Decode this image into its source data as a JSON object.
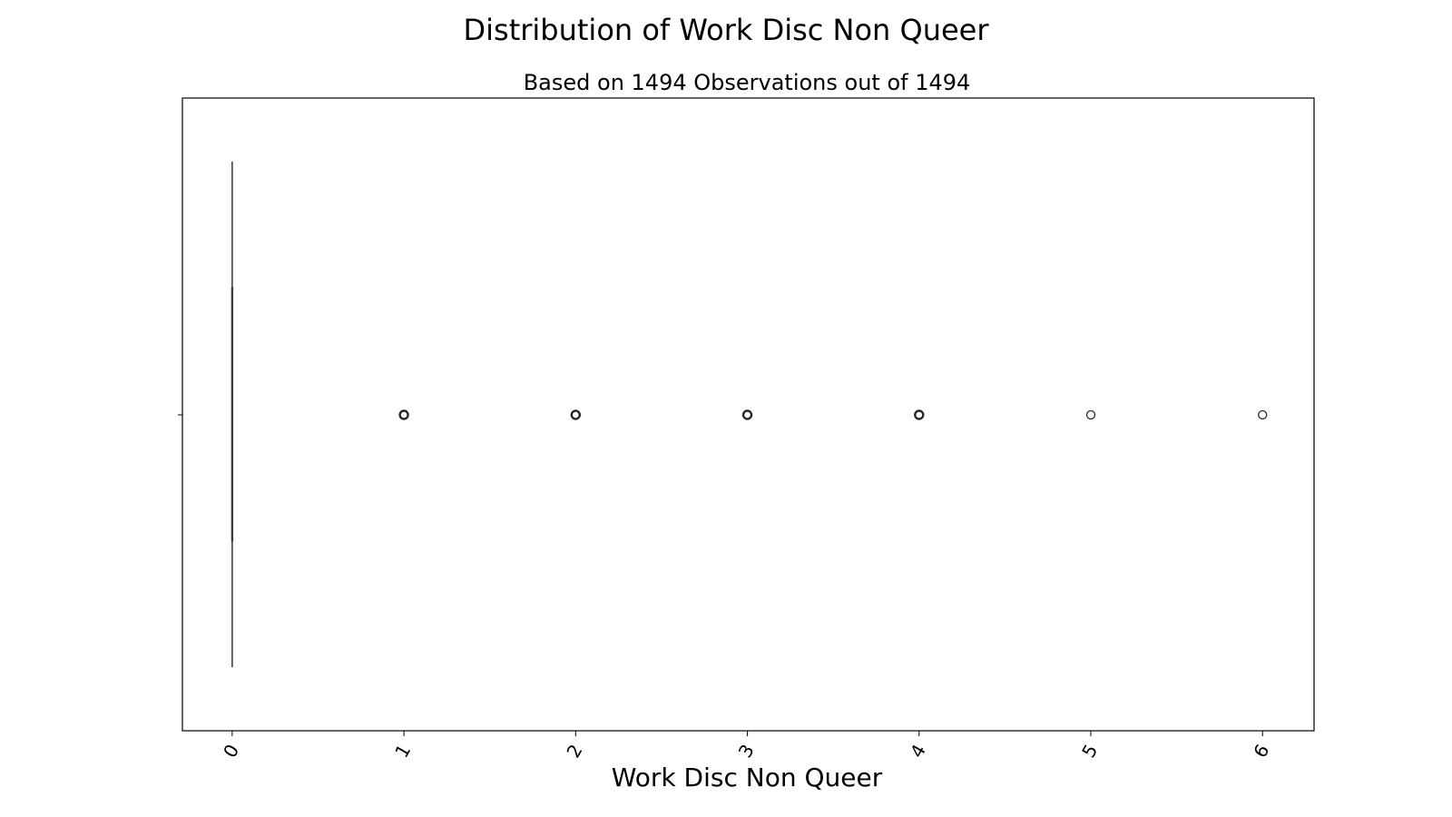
{
  "chart_data": {
    "type": "box",
    "orientation": "horizontal",
    "title": "Distribution of Work Disc Non Queer",
    "subtitle": "Based on 1494 Observations out of 1494",
    "xlabel": "Work Disc Non Queer",
    "ylabel": "",
    "xlim": [
      -0.29,
      6.3
    ],
    "xticks": [
      0,
      1,
      2,
      3,
      4,
      5,
      6
    ],
    "tick_labels": [
      "0",
      "1",
      "2",
      "3",
      "4",
      "5",
      "6"
    ],
    "tick_rotation": 60,
    "grid": false,
    "box": {
      "q1": 0,
      "median": 0,
      "q3": 0,
      "whisker_low": 0,
      "whisker_high": 0
    },
    "outliers": [
      1,
      2,
      3,
      4,
      5,
      6
    ]
  },
  "colors": {
    "frame": "#000000",
    "box_line": "#3f3f3f",
    "outlier_edge": "#262626"
  }
}
